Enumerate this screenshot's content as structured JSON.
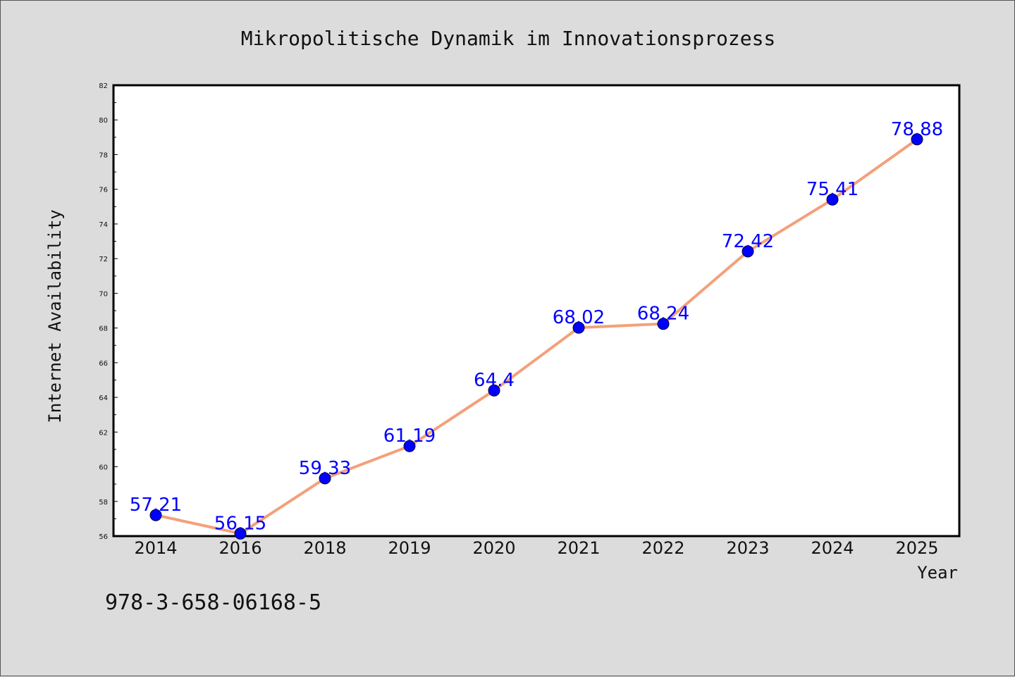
{
  "chart_data": {
    "type": "line",
    "title": "Mikropolitische Dynamik im Innovationsprozess",
    "xlabel": "Year",
    "ylabel": "Internet Availability",
    "categories": [
      "2014",
      "2016",
      "2018",
      "2019",
      "2020",
      "2021",
      "2022",
      "2023",
      "2024",
      "2025"
    ],
    "values": [
      57.21,
      56.15,
      59.33,
      61.19,
      64.4,
      68.02,
      68.24,
      72.42,
      75.41,
      78.88
    ],
    "data_labels": [
      "57.21",
      "56.15",
      "59.33",
      "61.19",
      "64.4",
      "68.02",
      "68.24",
      "72.42",
      "75.41",
      "78.88"
    ],
    "ylim": [
      56,
      82
    ],
    "yticks": [
      56,
      58,
      60,
      62,
      64,
      66,
      68,
      70,
      72,
      74,
      76,
      78,
      80,
      82
    ],
    "grid": false,
    "legend": "none",
    "line_color": "#f4a07a",
    "marker_color": "#0000ff",
    "label_color": "#0000ff",
    "background": "#dcdcdc"
  },
  "footer_text": "978-3-658-06168-5"
}
